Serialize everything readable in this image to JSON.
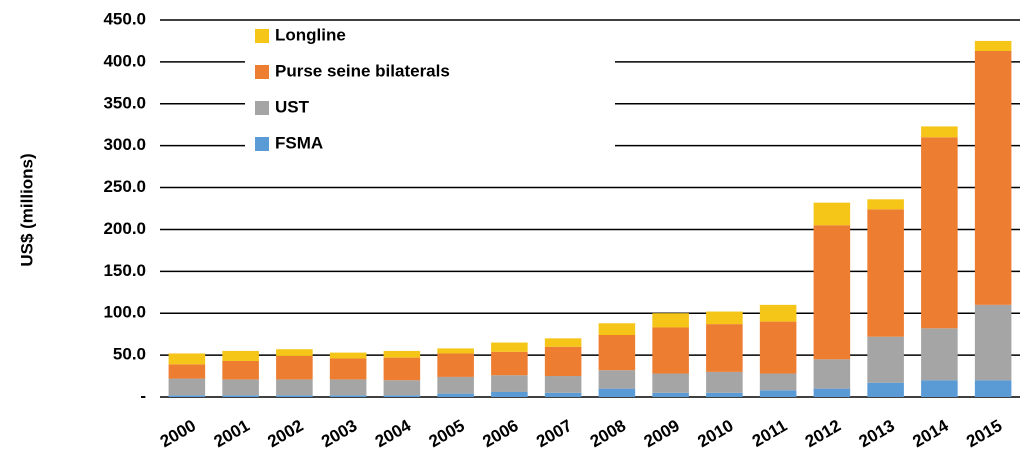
{
  "chart_data": {
    "type": "stacked_bar",
    "y_label": "US$ (millions)",
    "categories": [
      "2000",
      "2001",
      "2002",
      "2003",
      "2004",
      "2005",
      "2006",
      "2007",
      "2008",
      "2009",
      "2010",
      "2011",
      "2012",
      "2013",
      "2014",
      "2015"
    ],
    "series": [
      {
        "name": "FSMA",
        "color": "#5b9bd5",
        "values": [
          2,
          2,
          2,
          2,
          2,
          4,
          6,
          5,
          10,
          5,
          5,
          8,
          10,
          17,
          20,
          20
        ]
      },
      {
        "name": "UST",
        "color": "#a5a5a5",
        "values": [
          20,
          19,
          19,
          19,
          18,
          20,
          20,
          20,
          22,
          23,
          25,
          20,
          35,
          55,
          62,
          90
        ]
      },
      {
        "name": "Purse seine bilaterals",
        "color": "#ed7d31",
        "values": [
          17,
          22,
          28,
          25,
          27,
          28,
          28,
          35,
          42,
          55,
          57,
          62,
          160,
          152,
          228,
          303
        ]
      },
      {
        "name": "Longline",
        "color": "#f5c518",
        "values": [
          13,
          12,
          8,
          7,
          8,
          6,
          11,
          10,
          14,
          17,
          15,
          20,
          27,
          12,
          13,
          12
        ]
      }
    ],
    "ylim": [
      0,
      450
    ],
    "yticks": [
      {
        "value": 0,
        "label": "-"
      },
      {
        "value": 50,
        "label": "50.0"
      },
      {
        "value": 100,
        "label": "100.0"
      },
      {
        "value": 150,
        "label": "150.0"
      },
      {
        "value": 200,
        "label": "200.0"
      },
      {
        "value": 250,
        "label": "250.0"
      },
      {
        "value": 300,
        "label": "300.0"
      },
      {
        "value": 350,
        "label": "350.0"
      },
      {
        "value": 400,
        "label": "400.0"
      },
      {
        "value": 450,
        "label": "450.0"
      }
    ],
    "grid": true,
    "legend": "upper-left"
  }
}
